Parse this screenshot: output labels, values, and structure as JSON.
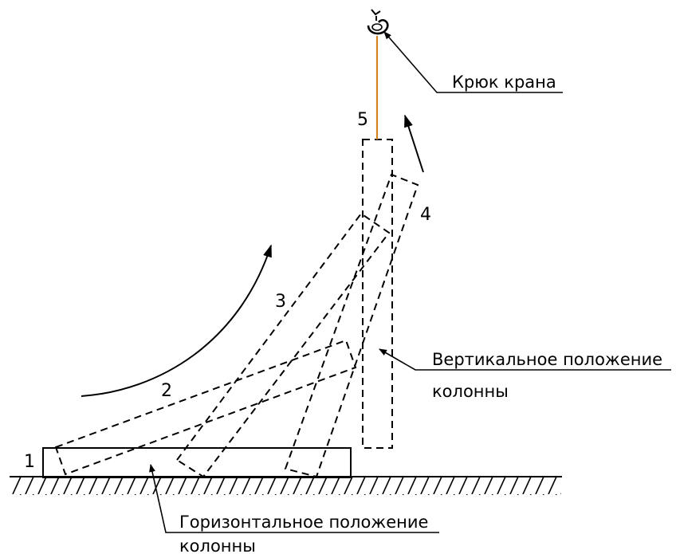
{
  "positions": [
    {
      "id": "1",
      "label": "1"
    },
    {
      "id": "2",
      "label": "2"
    },
    {
      "id": "3",
      "label": "3"
    },
    {
      "id": "4",
      "label": "4"
    },
    {
      "id": "5",
      "label": "5"
    }
  ],
  "callouts": {
    "hook": {
      "text": "Крюк крана"
    },
    "vertical": {
      "line1": "Вертикальное положение",
      "line2": "колонны"
    },
    "horizontal": {
      "line1": "Горизонтальное положение",
      "line2": "колонны"
    }
  },
  "colors": {
    "line": "#000000",
    "cable": "#d4821f"
  },
  "icons": {
    "hook": "crane-hook-icon",
    "arrows": "rotation-arrow-icon"
  }
}
